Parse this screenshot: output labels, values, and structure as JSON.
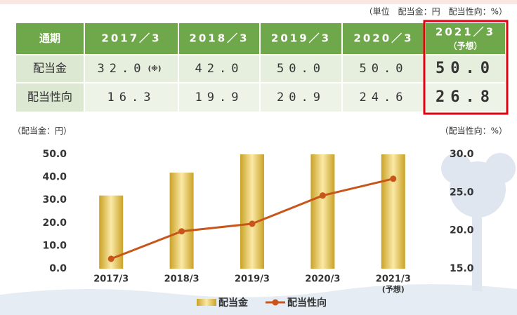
{
  "table": {
    "unit_note": "（単位　配当金：円　配当性向：%）",
    "header": [
      "通期",
      "2017／3",
      "2018／3",
      "2019／3",
      "2020／3",
      "2021／3"
    ],
    "header_note": "（予想）",
    "rows": [
      {
        "label": "配当金",
        "cells": [
          "32.0",
          "42.0",
          "50.0",
          "50.0",
          "50.0"
        ],
        "note_mark": "(※)"
      },
      {
        "label": "配当性向",
        "cells": [
          "16.3",
          "19.9",
          "20.9",
          "24.6",
          "26.8"
        ]
      }
    ]
  },
  "chart_data": {
    "type": "bar-line",
    "y_label": "（配当金：円）",
    "y2_label": "（配当性向：%）",
    "categories": [
      "2017/3",
      "2018/3",
      "2019/3",
      "2020/3",
      "2021/3"
    ],
    "category_sublabels": [
      null,
      null,
      null,
      null,
      "(予想)"
    ],
    "series": [
      {
        "name": "配当金",
        "type": "bar",
        "color": "#c9a227",
        "values": [
          32.0,
          42.0,
          50.0,
          50.0,
          50.0
        ]
      },
      {
        "name": "配当性向",
        "type": "line",
        "axis": "y2",
        "color": "#c8561b",
        "values": [
          16.3,
          19.9,
          20.9,
          24.6,
          26.8
        ]
      }
    ],
    "ylim": [
      0,
      50
    ],
    "yticks": [
      {
        "value": 0,
        "label": "0.0"
      },
      {
        "value": 10,
        "label": "10.0"
      },
      {
        "value": 20,
        "label": "20.0"
      },
      {
        "value": 30,
        "label": "30.0"
      },
      {
        "value": 40,
        "label": "40.0"
      },
      {
        "value": 50,
        "label": "50.0"
      }
    ],
    "y2lim": [
      15,
      30
    ],
    "y2ticks": [
      {
        "value": 15,
        "label": "15.0"
      },
      {
        "value": 20,
        "label": "20.0"
      },
      {
        "value": 25,
        "label": "25.0"
      },
      {
        "value": 30,
        "label": "30.0"
      }
    ]
  }
}
